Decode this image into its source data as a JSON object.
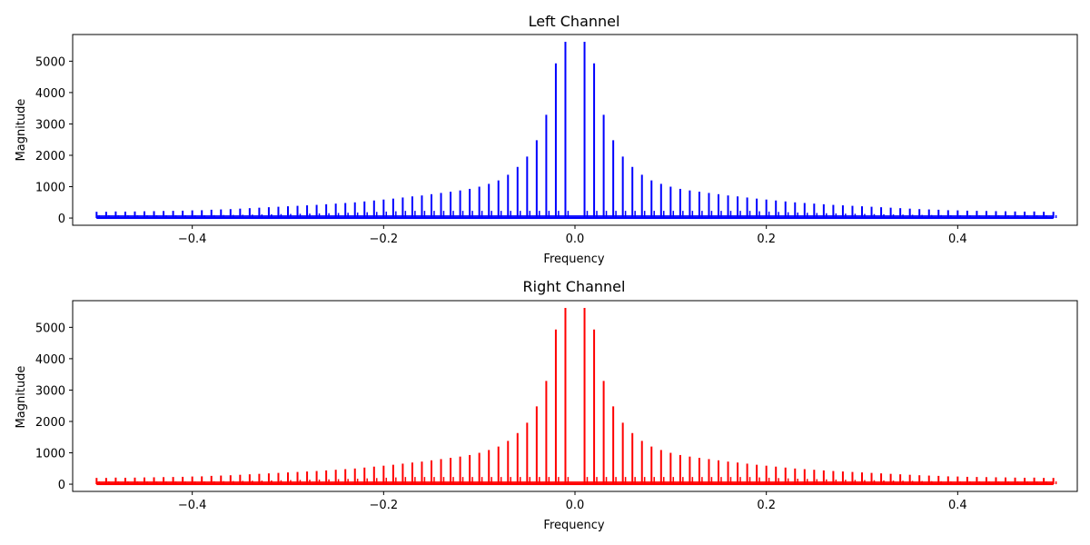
{
  "chart_data": [
    {
      "type": "line",
      "title": "Left Channel",
      "xlabel": "Frequency",
      "ylabel": "Magnitude",
      "xlim": [
        -0.525,
        0.525
      ],
      "ylim": [
        -230,
        5850
      ],
      "xticks": [
        -0.4,
        -0.2,
        0.0,
        0.2,
        0.4
      ],
      "xtick_labels": [
        "−0.4",
        "−0.2",
        "0.0",
        "0.2",
        "0.4"
      ],
      "yticks": [
        0,
        1000,
        2000,
        3000,
        4000,
        5000
      ],
      "ytick_labels": [
        "0",
        "1000",
        "2000",
        "3000",
        "4000",
        "5000"
      ],
      "grid": false,
      "series": [
        {
          "color": "#0000ff",
          "spike_spacing": 0.01,
          "spike_x": [
            -0.5,
            -0.49,
            -0.48,
            -0.47,
            -0.46,
            -0.45,
            -0.44,
            -0.43,
            -0.42,
            -0.41,
            -0.4,
            -0.39,
            -0.38,
            -0.37,
            -0.36,
            -0.35,
            -0.34,
            -0.33,
            -0.32,
            -0.31,
            -0.3,
            -0.29,
            -0.28,
            -0.27,
            -0.26,
            -0.25,
            -0.24,
            -0.23,
            -0.22,
            -0.21,
            -0.2,
            -0.19,
            -0.18,
            -0.17,
            -0.16,
            -0.15,
            -0.14,
            -0.13,
            -0.12,
            -0.11,
            -0.1,
            -0.09,
            -0.08,
            -0.07,
            -0.06,
            -0.05,
            -0.04,
            -0.03,
            -0.02,
            -0.01,
            0.0,
            0.01,
            0.02,
            0.03,
            0.04,
            0.05,
            0.06,
            0.07,
            0.08,
            0.09,
            0.1,
            0.11,
            0.12,
            0.13,
            0.14,
            0.15,
            0.16,
            0.17,
            0.18,
            0.19,
            0.2,
            0.21,
            0.22,
            0.23,
            0.24,
            0.25,
            0.26,
            0.27,
            0.28,
            0.29,
            0.3,
            0.31,
            0.32,
            0.33,
            0.34,
            0.35,
            0.36,
            0.37,
            0.38,
            0.39,
            0.4,
            0.41,
            0.42,
            0.43,
            0.44,
            0.45,
            0.46,
            0.47,
            0.48,
            0.49,
            0.5
          ],
          "spike_y": [
            200,
            200,
            210,
            205,
            210,
            215,
            220,
            225,
            230,
            235,
            245,
            250,
            265,
            275,
            285,
            300,
            315,
            330,
            345,
            360,
            375,
            390,
            405,
            420,
            440,
            460,
            480,
            500,
            530,
            560,
            590,
            620,
            655,
            690,
            720,
            760,
            800,
            840,
            880,
            930,
            1000,
            1090,
            1200,
            1380,
            1630,
            1960,
            2480,
            3290,
            4930,
            5620,
            0,
            5620,
            4930,
            3290,
            2480,
            1960,
            1630,
            1380,
            1200,
            1090,
            1000,
            930,
            880,
            840,
            800,
            760,
            720,
            690,
            655,
            620,
            590,
            560,
            530,
            500,
            480,
            460,
            440,
            420,
            405,
            390,
            375,
            360,
            345,
            330,
            315,
            300,
            285,
            275,
            265,
            250,
            245,
            235,
            230,
            225,
            220,
            215,
            210,
            205,
            210,
            200,
            200
          ],
          "noise_floor": 90
        }
      ]
    },
    {
      "type": "line",
      "title": "Right Channel",
      "xlabel": "Frequency",
      "ylabel": "Magnitude",
      "xlim": [
        -0.525,
        0.525
      ],
      "ylim": [
        -230,
        5850
      ],
      "xticks": [
        -0.4,
        -0.2,
        0.0,
        0.2,
        0.4
      ],
      "xtick_labels": [
        "−0.4",
        "−0.2",
        "0.0",
        "0.2",
        "0.4"
      ],
      "yticks": [
        0,
        1000,
        2000,
        3000,
        4000,
        5000
      ],
      "ytick_labels": [
        "0",
        "1000",
        "2000",
        "3000",
        "4000",
        "5000"
      ],
      "grid": false,
      "series": [
        {
          "color": "#ff0000",
          "spike_spacing": 0.01,
          "spike_x": [
            -0.5,
            -0.49,
            -0.48,
            -0.47,
            -0.46,
            -0.45,
            -0.44,
            -0.43,
            -0.42,
            -0.41,
            -0.4,
            -0.39,
            -0.38,
            -0.37,
            -0.36,
            -0.35,
            -0.34,
            -0.33,
            -0.32,
            -0.31,
            -0.3,
            -0.29,
            -0.28,
            -0.27,
            -0.26,
            -0.25,
            -0.24,
            -0.23,
            -0.22,
            -0.21,
            -0.2,
            -0.19,
            -0.18,
            -0.17,
            -0.16,
            -0.15,
            -0.14,
            -0.13,
            -0.12,
            -0.11,
            -0.1,
            -0.09,
            -0.08,
            -0.07,
            -0.06,
            -0.05,
            -0.04,
            -0.03,
            -0.02,
            -0.01,
            0.0,
            0.01,
            0.02,
            0.03,
            0.04,
            0.05,
            0.06,
            0.07,
            0.08,
            0.09,
            0.1,
            0.11,
            0.12,
            0.13,
            0.14,
            0.15,
            0.16,
            0.17,
            0.18,
            0.19,
            0.2,
            0.21,
            0.22,
            0.23,
            0.24,
            0.25,
            0.26,
            0.27,
            0.28,
            0.29,
            0.3,
            0.31,
            0.32,
            0.33,
            0.34,
            0.35,
            0.36,
            0.37,
            0.38,
            0.39,
            0.4,
            0.41,
            0.42,
            0.43,
            0.44,
            0.45,
            0.46,
            0.47,
            0.48,
            0.49,
            0.5
          ],
          "spike_y": [
            200,
            200,
            210,
            205,
            210,
            215,
            220,
            225,
            230,
            235,
            245,
            250,
            265,
            275,
            285,
            300,
            315,
            330,
            345,
            360,
            375,
            390,
            405,
            420,
            440,
            460,
            480,
            500,
            530,
            560,
            590,
            620,
            655,
            690,
            720,
            760,
            800,
            840,
            880,
            930,
            1000,
            1090,
            1200,
            1380,
            1630,
            1960,
            2480,
            3290,
            4930,
            5620,
            0,
            5620,
            4930,
            3290,
            2480,
            1960,
            1630,
            1380,
            1200,
            1090,
            1000,
            930,
            880,
            840,
            800,
            760,
            720,
            690,
            655,
            620,
            590,
            560,
            530,
            500,
            480,
            460,
            440,
            420,
            405,
            390,
            375,
            360,
            345,
            330,
            315,
            300,
            285,
            275,
            265,
            250,
            245,
            235,
            230,
            225,
            220,
            215,
            210,
            205,
            210,
            200,
            200
          ],
          "noise_floor": 90
        }
      ]
    }
  ]
}
